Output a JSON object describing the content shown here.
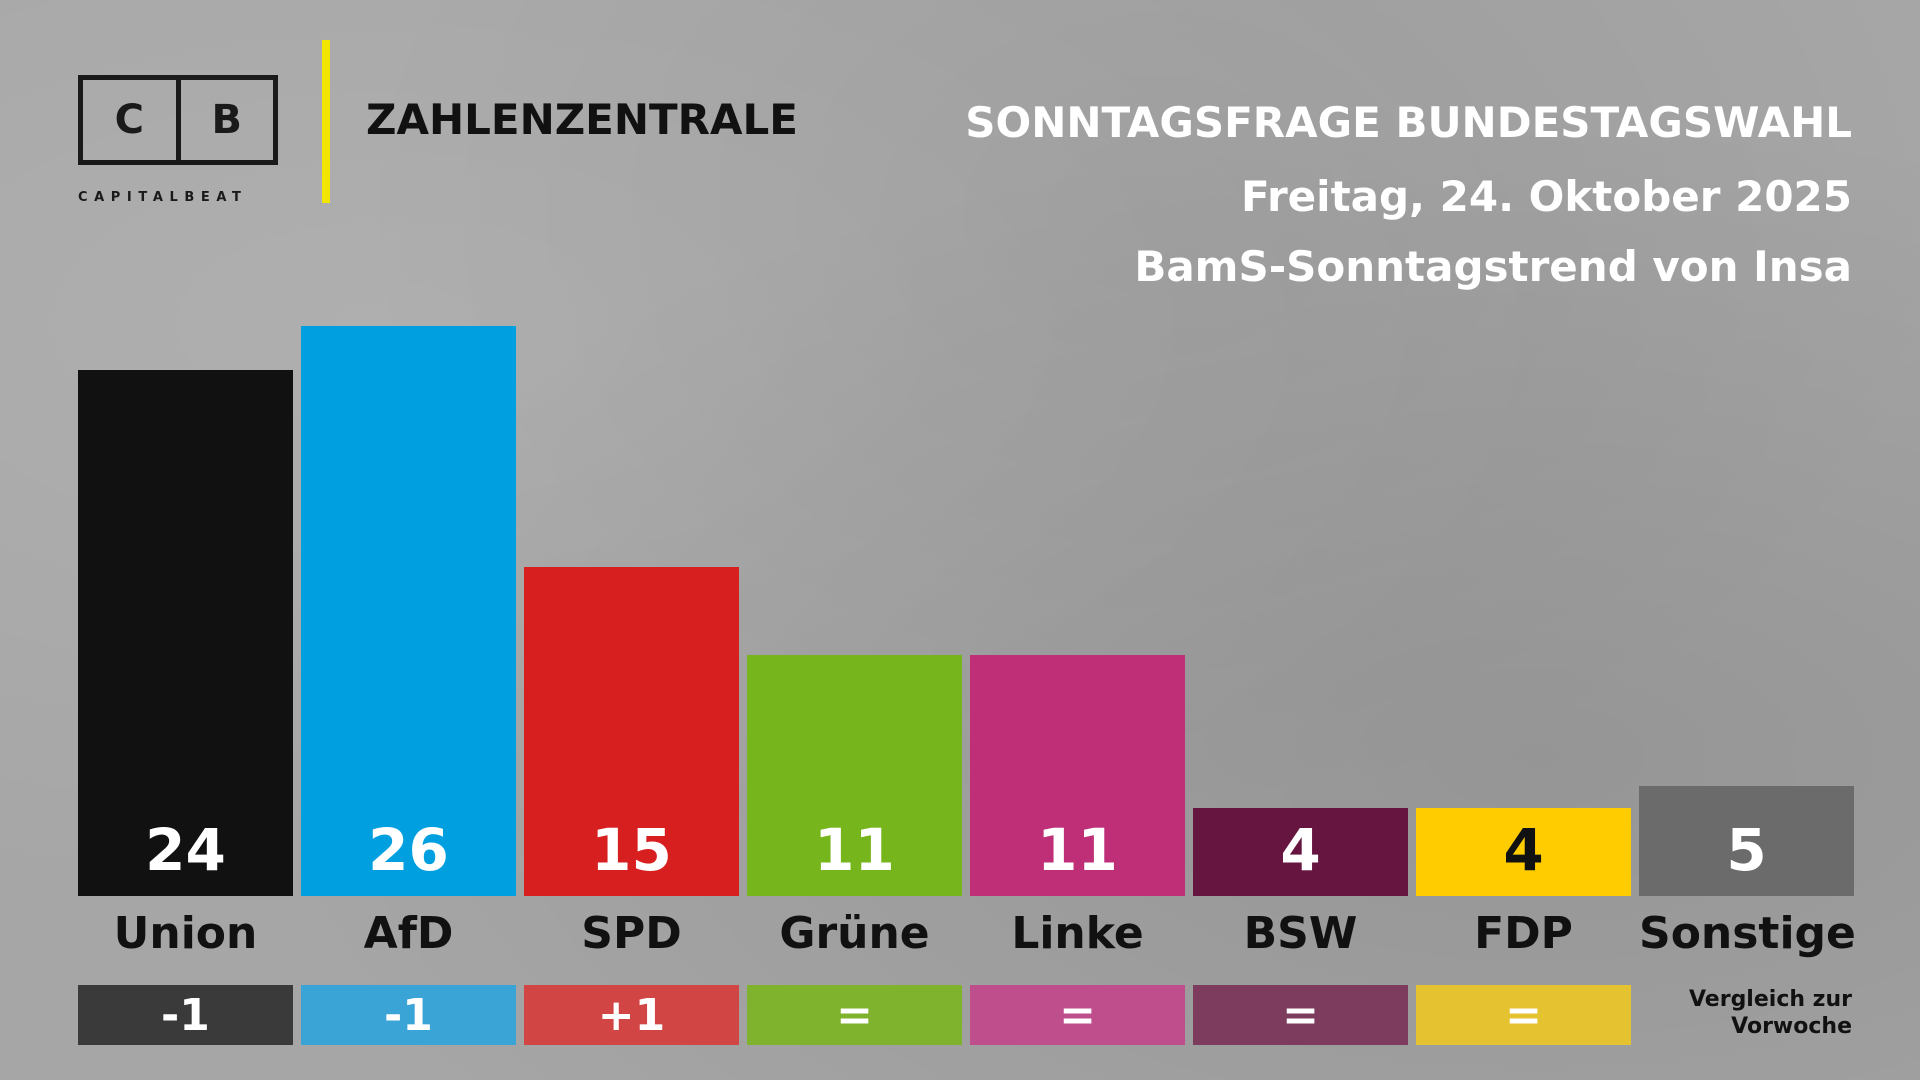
{
  "logo": {
    "letter_left": "C",
    "letter_right": "B",
    "subtitle": "CAPITALBEAT"
  },
  "brand": "ZAHLENZENTRALE",
  "header": {
    "title": "SONNTAGSFRAGE BUNDESTAGSWAHL",
    "date": "Freitag, 24. Oktober 2025",
    "source": "BamS-Sonntagstrend von Insa"
  },
  "comparison_note": {
    "line1": "Vergleich zur",
    "line2": "Vorwoche"
  },
  "colors": {
    "accent": "#f2e600",
    "background": "#a6a6a6"
  },
  "chart_data": {
    "type": "bar",
    "categories": [
      "Union",
      "AfD",
      "SPD",
      "Grüne",
      "Linke",
      "BSW",
      "FDP",
      "Sonstige"
    ],
    "values": [
      24,
      26,
      15,
      11,
      11,
      4,
      4,
      5
    ],
    "changes": [
      "-1",
      "-1",
      "+1",
      "=",
      "=",
      "=",
      "=",
      null
    ],
    "bar_colors": [
      "#111111",
      "#00a0e0",
      "#d71f1f",
      "#76b51b",
      "#be2f78",
      "#651540",
      "#ffcc00",
      "#6b6b6b"
    ],
    "value_text_colors": [
      "#ffffff",
      "#ffffff",
      "#ffffff",
      "#ffffff",
      "#ffffff",
      "#ffffff",
      "#111111",
      "#ffffff"
    ],
    "change_colors": [
      "#3a3a3a",
      "#3aa4d6",
      "#d24545",
      "#7fb22d",
      "#bf4f8c",
      "#7d3c5e",
      "#e5c230",
      null
    ],
    "ylim": [
      0,
      26
    ],
    "grid": false,
    "legend": "none"
  }
}
